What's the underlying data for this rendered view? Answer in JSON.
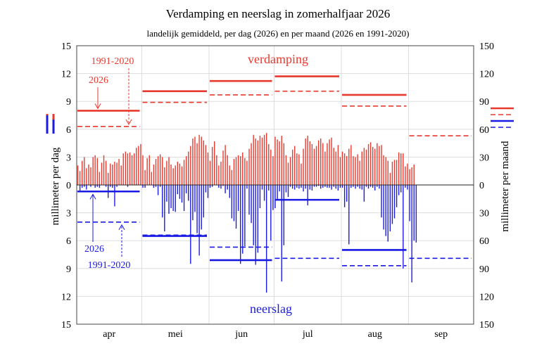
{
  "chart_data": {
    "type": "bar",
    "title": "Verdamping en neerslag in zomerhalfjaar 2026",
    "subtitle": "landelijk gemiddeld, per dag (2026) en per maand (2026 en 1991-2020)",
    "ylabel_left": "millimeter per dag",
    "ylabel_right": "millimeter per maand",
    "months": [
      "apr",
      "mei",
      "jun",
      "jul",
      "aug",
      "sep"
    ],
    "days_in_month": [
      30,
      31,
      30,
      31,
      31,
      30
    ],
    "left_ticks": [
      "15",
      "12",
      "9",
      "6",
      "3",
      "0",
      "3",
      "6",
      "9",
      "12",
      "15"
    ],
    "right_ticks": [
      "150",
      "120",
      "90",
      "60",
      "30",
      "0",
      "30",
      "60",
      "90",
      "120",
      "150"
    ],
    "ylim_day": [
      -15,
      15
    ],
    "ylim_month": [
      -150,
      150
    ],
    "grid": true,
    "colors": {
      "evaporation": "#e8392e",
      "precipitation": "#1a1ae6",
      "grid": "#dddddd"
    },
    "labels": {
      "evaporation": "verdamping",
      "precipitation": "neerslag",
      "evap_norm": "1991-2020",
      "evap_year": "2026",
      "prec_year": "2026",
      "prec_norm": "1991-2020"
    },
    "series": [
      {
        "kind": "daily_evaporation_mm",
        "values": [
          2.1,
          1.5,
          2.6,
          3.0,
          1.8,
          2.2,
          1.9,
          3.0,
          3.2,
          2.9,
          1.4,
          2.4,
          3.2,
          2.6,
          1.3,
          2.3,
          2.2,
          2.5,
          2.4,
          2.8,
          2.1,
          3.4,
          3.6,
          3.4,
          3.5,
          3.2,
          3.4,
          4.0,
          4.2,
          4.4,
          3.2,
          1.6,
          2.9,
          3.2,
          1.4,
          2.2,
          2.8,
          3.1,
          3.3,
          3.0,
          1.9,
          2.6,
          3.0,
          2.2,
          1.8,
          2.1,
          2.5,
          2.3,
          2.0,
          2.7,
          3.1,
          3.6,
          4.2,
          5.0,
          5.2,
          4.5,
          5.4,
          5.2,
          4.8,
          4.3,
          3.5,
          2.6,
          4.1,
          4.7,
          3.2,
          2.1,
          2.5,
          3.7,
          4.3,
          3.2,
          2.1,
          1.6,
          2.8,
          3.0,
          3.2,
          3.1,
          3.5,
          2.9,
          2.6,
          3.9,
          4.5,
          5.4,
          5.0,
          4.8,
          5.3,
          5.1,
          5.4,
          5.6,
          4.4,
          3.8,
          3.1,
          5.2,
          4.9,
          4.7,
          5.3,
          4.5,
          3.2,
          2.4,
          3.0,
          3.8,
          4.2,
          3.4,
          3.3,
          2.3,
          3.9,
          5.0,
          5.3,
          4.7,
          4.4,
          3.9,
          4.2,
          4.8,
          5.0,
          4.5,
          3.6,
          4.5,
          4.9,
          5.1,
          4.0,
          3.6,
          4.3,
          3.0,
          3.6,
          3.4,
          3.1,
          3.9,
          4.3,
          3.1,
          3.0,
          3.3,
          2.6,
          3.6,
          4.0,
          3.8,
          4.4,
          4.6,
          4.1,
          3.9,
          4.5,
          4.2,
          4.3,
          3.2,
          3.0,
          2.6,
          1.3,
          2.5,
          2.7,
          2.7,
          3.5,
          3.4,
          3.4,
          2.0,
          2.3,
          1.7,
          1.9,
          2.2
        ],
        "note_start_month": "apr"
      },
      {
        "kind": "daily_precipitation_mm",
        "values": [
          0,
          0.6,
          0.3,
          0.2,
          0.5,
          0,
          0.2,
          0,
          0.3,
          0.2,
          0.3,
          0,
          0,
          0.2,
          1.4,
          0.2,
          0.3,
          2.3,
          0.2,
          0,
          0,
          0,
          0,
          0.2,
          0,
          0,
          0,
          0,
          0,
          0,
          0.3,
          0.3,
          0,
          0,
          0,
          0.3,
          0.2,
          1.1,
          0.2,
          3.5,
          5.0,
          1.8,
          3.1,
          2.5,
          2.8,
          2.9,
          1.0,
          1.5,
          1.9,
          2.8,
          0.9,
          1.7,
          8.5,
          3.8,
          2.9,
          5.2,
          7.6,
          4.8,
          3.5,
          0.8,
          1.4,
          0.3,
          0.2,
          0,
          0,
          0.3,
          0.4,
          0.1,
          0.9,
          0.5,
          1.4,
          3.6,
          3.9,
          4.7,
          2.8,
          8.5,
          7.4,
          6.6,
          0.4,
          3.2,
          4.1,
          6.5,
          8.6,
          7.3,
          2.5,
          0.5,
          1.7,
          11.6,
          0.6,
          6.0,
          2.7,
          2.5,
          1.6,
          0.7,
          10.4,
          6.5,
          0.8,
          1.3,
          0.2,
          0.4,
          0.5,
          0.3,
          0.4,
          0.3,
          0.7,
          0.4,
          2.2,
          0.5,
          0.6,
          0.2,
          0.2,
          0.1,
          0.4,
          0.3,
          0.2,
          0.3,
          0.3,
          0.5,
          0.2,
          0.4,
          0.6,
          0.3,
          0.3,
          2.4,
          1.8,
          6.4,
          0.3,
          0.2,
          0.4,
          0.2,
          0.4,
          0.5,
          1.8,
          0.2,
          0.4,
          0.2,
          0.3,
          0.6,
          0.2,
          0.4,
          3.5,
          4.8,
          5.5,
          6.1,
          5.0,
          4.2,
          3.6,
          2.4,
          1.1,
          0.8,
          9.0,
          0.3,
          0.5,
          3.9,
          10.5,
          6.0,
          6.2
        ],
        "note_start_month": "apr"
      },
      {
        "kind": "monthly_evaporation_2026_mm",
        "months": [
          "apr",
          "mei",
          "jun",
          "jul",
          "aug"
        ],
        "values": [
          80,
          101,
          112,
          117,
          97
        ]
      },
      {
        "kind": "monthly_evaporation_1991_2020_mm",
        "months": [
          "apr",
          "mei",
          "jun",
          "jul",
          "aug",
          "sep"
        ],
        "values": [
          63,
          89,
          97,
          101,
          85,
          53
        ]
      },
      {
        "kind": "monthly_precipitation_2026_mm",
        "months": [
          "apr",
          "mei",
          "jun",
          "jul",
          "aug"
        ],
        "values": [
          7,
          55,
          81,
          16,
          70
        ]
      },
      {
        "kind": "monthly_precipitation_1991_2020_mm",
        "months": [
          "apr",
          "mei",
          "jun",
          "jul",
          "aug",
          "sep"
        ],
        "values": [
          40,
          54,
          67,
          79,
          87,
          79
        ]
      }
    ]
  }
}
